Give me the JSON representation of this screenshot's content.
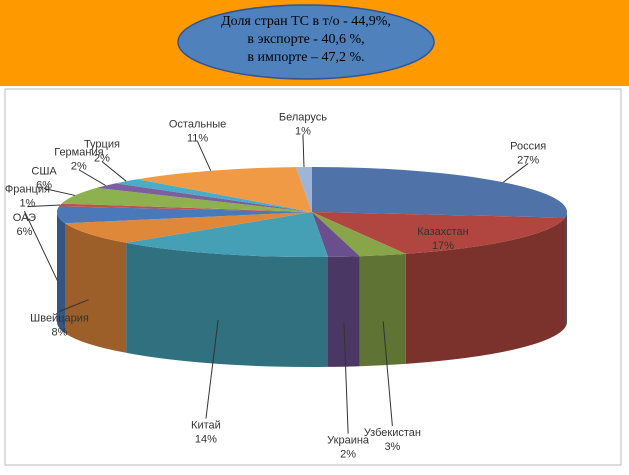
{
  "chart_data": {
    "type": "pie",
    "title": [
      "Доля стран ТС в т/о - 44,9%,",
      "в экспорте - 40,6 %,",
      "в импорте – 47,2 %."
    ],
    "categories": [
      "Россия",
      "Казахстан",
      "Узбекистан",
      "Украина",
      "Китай",
      "Швейцария",
      "ОАЭ",
      "Франция",
      "США",
      "Германия",
      "Турция",
      "Остальные",
      "Беларусь"
    ],
    "values": [
      27,
      17,
      3,
      2,
      14,
      8,
      6,
      1,
      6,
      2,
      2,
      11,
      1
    ],
    "value_labels": [
      "27%",
      "17%",
      "3%",
      "2%",
      "14%",
      "8%",
      "6%",
      "1%",
      "6%",
      "2%",
      "2%",
      "11%",
      "1%"
    ],
    "colors": [
      "#4f72a8",
      "#b0463f",
      "#88a54a",
      "#6a4f8e",
      "#45a0b5",
      "#e0883a",
      "#4a78b8",
      "#c0504d",
      "#8db14f",
      "#7b5fa0",
      "#4bacc6",
      "#f09a45",
      "#9db5d9"
    ]
  }
}
